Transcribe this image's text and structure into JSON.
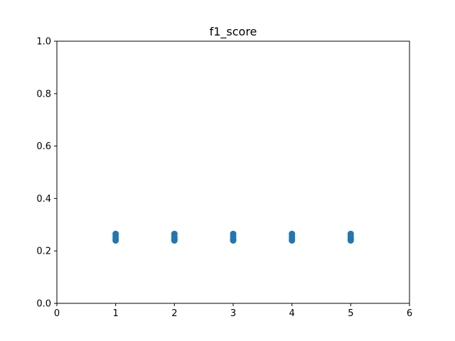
{
  "chart_data": {
    "type": "scatter",
    "title": "f1_score",
    "xlabel": "",
    "ylabel": "",
    "xlim": [
      0,
      6
    ],
    "ylim": [
      0.0,
      1.0
    ],
    "xticks": [
      "0",
      "1",
      "2",
      "3",
      "4",
      "5",
      "6"
    ],
    "yticks": [
      "0.0",
      "0.2",
      "0.4",
      "0.6",
      "0.8",
      "1.0"
    ],
    "grid": false,
    "marker_color": "#1f77b4",
    "series": [
      {
        "points": [
          {
            "x": 1,
            "y": 0.24
          },
          {
            "x": 1,
            "y": 0.245
          },
          {
            "x": 1,
            "y": 0.255
          },
          {
            "x": 1,
            "y": 0.265
          },
          {
            "x": 2,
            "y": 0.24
          },
          {
            "x": 2,
            "y": 0.245
          },
          {
            "x": 2,
            "y": 0.255
          },
          {
            "x": 2,
            "y": 0.265
          },
          {
            "x": 3,
            "y": 0.24
          },
          {
            "x": 3,
            "y": 0.245
          },
          {
            "x": 3,
            "y": 0.255
          },
          {
            "x": 3,
            "y": 0.265
          },
          {
            "x": 4,
            "y": 0.24
          },
          {
            "x": 4,
            "y": 0.245
          },
          {
            "x": 4,
            "y": 0.255
          },
          {
            "x": 4,
            "y": 0.265
          },
          {
            "x": 5,
            "y": 0.24
          },
          {
            "x": 5,
            "y": 0.245
          },
          {
            "x": 5,
            "y": 0.255
          },
          {
            "x": 5,
            "y": 0.265
          }
        ]
      }
    ]
  }
}
